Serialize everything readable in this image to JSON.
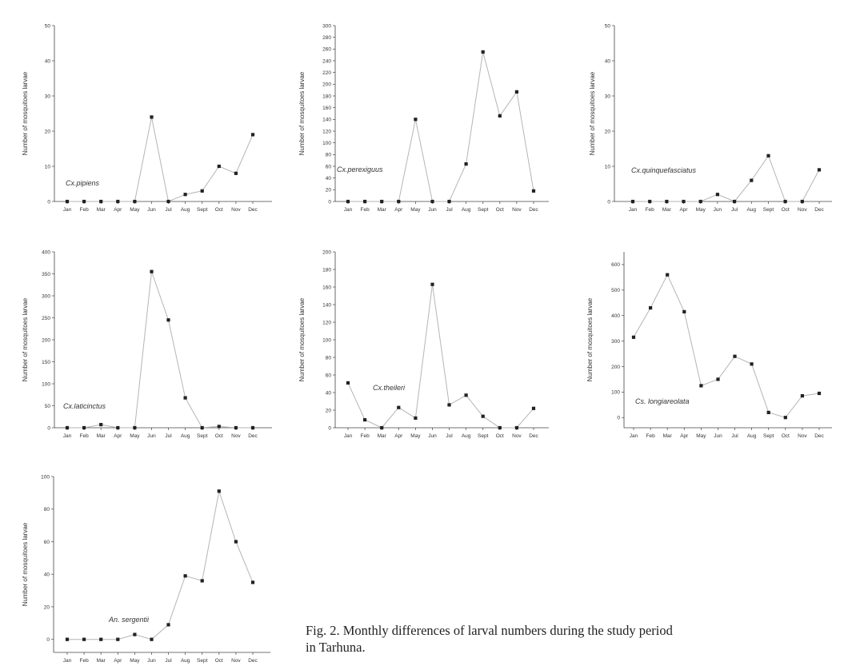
{
  "caption": {
    "line1": "Fig. 2. Monthly differences of larval numbers during the study period",
    "line2": "in Tarhuna."
  },
  "colors": {
    "line": "#b5b5b5",
    "marker": "#222222",
    "axis": "#444444"
  },
  "chart_data": [
    {
      "type": "line",
      "species_label": "Cx.pipiens",
      "ylabel": "Number of mosquitoes larvae",
      "categories": [
        "Jan",
        "Feb",
        "Mar",
        "Apr",
        "May",
        "Jun",
        "Jul",
        "Aug",
        "Sept",
        "Oct",
        "Nov",
        "Dec"
      ],
      "values": [
        0,
        0,
        0,
        0,
        0,
        24,
        0,
        2,
        3,
        10,
        8,
        19
      ],
      "ylim": [
        0,
        50
      ],
      "yticks": [
        0,
        10,
        20,
        30,
        40,
        50
      ]
    },
    {
      "type": "line",
      "species_label": "Cx.perexiguus",
      "ylabel": "Number of mosquitoes larvae",
      "categories": [
        "Jan",
        "Feb",
        "Mar",
        "Apr",
        "May",
        "Jun",
        "Jul",
        "Aug",
        "Sept",
        "Oct",
        "Nov",
        "Dec"
      ],
      "values": [
        0,
        0,
        0,
        0,
        140,
        0,
        0,
        64,
        255,
        146,
        187,
        18
      ],
      "ylim": [
        0,
        300
      ],
      "yticks": [
        0,
        20,
        40,
        60,
        80,
        100,
        120,
        140,
        160,
        180,
        200,
        220,
        240,
        260,
        280,
        300
      ]
    },
    {
      "type": "line",
      "species_label": "Cx.quinquefasciatus",
      "ylabel": "Number of mosquitoes larvae",
      "categories": [
        "Jan",
        "Feb",
        "Mar",
        "Apr",
        "May",
        "Jun",
        "Jul",
        "Aug",
        "Sept",
        "Oct",
        "Nov",
        "Dec"
      ],
      "values": [
        0,
        0,
        0,
        0,
        0,
        2,
        0,
        6,
        13,
        0,
        0,
        9
      ],
      "ylim": [
        0,
        50
      ],
      "yticks": [
        0,
        10,
        20,
        30,
        40,
        50
      ]
    },
    {
      "type": "line",
      "species_label": "Cx.laticinctus",
      "ylabel": "Number of mosquitoes larvae",
      "categories": [
        "Jan",
        "Feb",
        "Mar",
        "Apr",
        "May",
        "Jun",
        "Jul",
        "Aug",
        "Sept",
        "Oct",
        "Nov",
        "Dec"
      ],
      "values": [
        0,
        0,
        7,
        0,
        0,
        355,
        245,
        68,
        0,
        3,
        0,
        0
      ],
      "ylim": [
        0,
        400
      ],
      "yticks": [
        0,
        50,
        100,
        150,
        200,
        250,
        300,
        350,
        400
      ]
    },
    {
      "type": "line",
      "species_label": "Cx.theileri",
      "ylabel": "Number of mosquitoes larvae",
      "categories": [
        "Jan",
        "Feb",
        "Mar",
        "Apr",
        "May",
        "Jun",
        "Jul",
        "Aug",
        "Sept",
        "Oct",
        "Nov",
        "Dec"
      ],
      "values": [
        51,
        9,
        0,
        23,
        11,
        163,
        26,
        37,
        13,
        0,
        0,
        22
      ],
      "ylim": [
        0,
        200
      ],
      "yticks": [
        0,
        20,
        40,
        60,
        80,
        100,
        120,
        140,
        160,
        180,
        200
      ]
    },
    {
      "type": "line",
      "species_label": "Cs. longiareolata",
      "ylabel": "Number of mosquitoes larvae",
      "categories": [
        "Jan",
        "Feb",
        "Mar",
        "Apr",
        "May",
        "Jun",
        "Jul",
        "Aug",
        "Sept",
        "Oct",
        "Nov",
        "Dec"
      ],
      "values": [
        315,
        430,
        560,
        415,
        125,
        150,
        240,
        210,
        20,
        0,
        85,
        95
      ],
      "ylim": [
        -40,
        650
      ],
      "yticks": [
        0,
        100,
        200,
        300,
        400,
        500,
        600
      ]
    },
    {
      "type": "line",
      "species_label": "An. sergentii",
      "ylabel": "Number of mosquitoes larvae",
      "categories": [
        "Jan",
        "Feb",
        "Mar",
        "Apr",
        "May",
        "Jun",
        "Jul",
        "Aug",
        "Sept",
        "Oct",
        "Nov",
        "Dec"
      ],
      "values": [
        0,
        0,
        0,
        0,
        3,
        0,
        9,
        39,
        36,
        91,
        60,
        35
      ],
      "ylim": [
        -8,
        100
      ],
      "yticks": [
        0,
        20,
        40,
        60,
        80,
        100
      ]
    }
  ]
}
